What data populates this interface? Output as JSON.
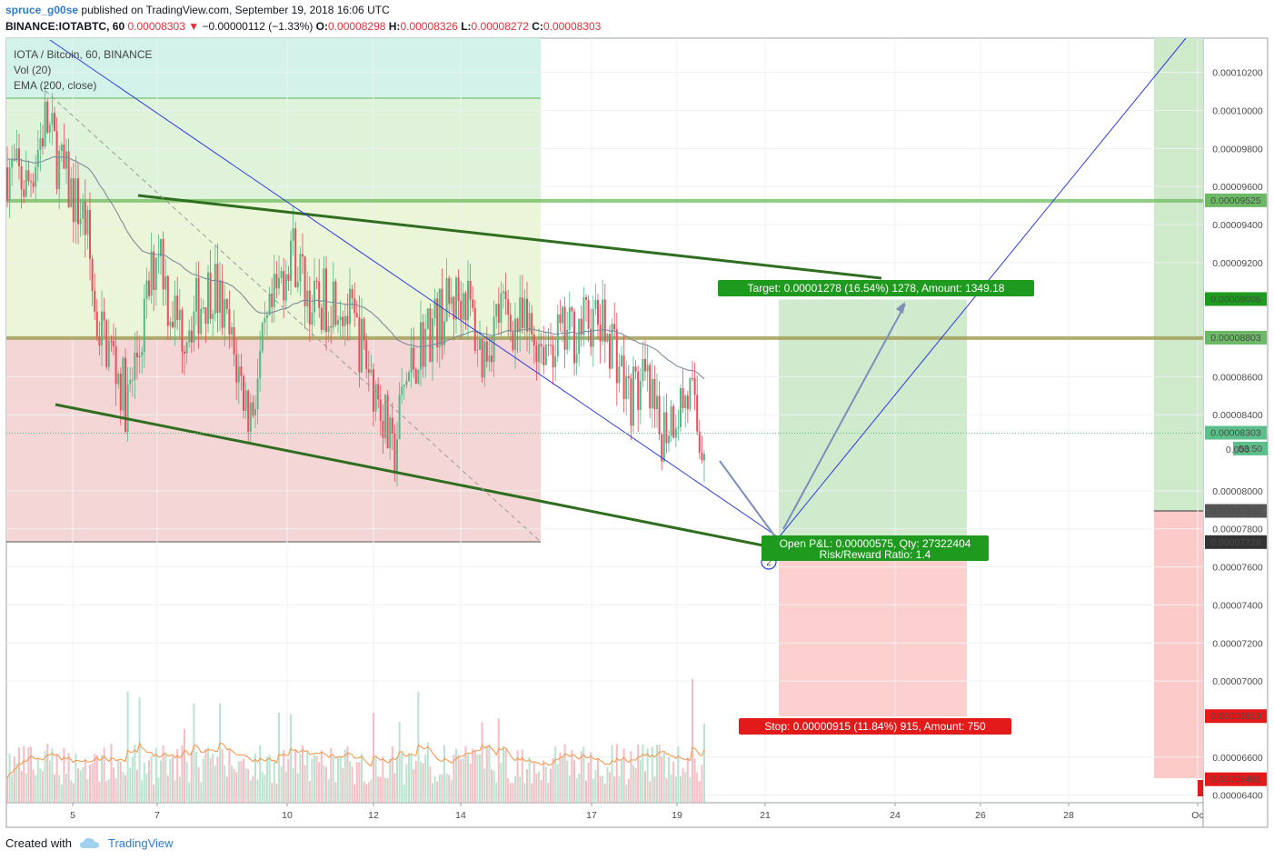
{
  "header": {
    "author": "spruce_g00se",
    "published": "published on TradingView.com, September 19, 2018 16:06 UTC",
    "symbol": "BINANCE:IOTABTC, 60",
    "last": "0.00008303",
    "change": "−0.00000112 (−1.33%)",
    "o_label": "O:",
    "o": "0.00008298",
    "h_label": "H:",
    "h": "0.00008326",
    "l_label": "L:",
    "l": "0.00008272",
    "c_label": "C:",
    "c": "0.00008303"
  },
  "legend": {
    "title": "IOTA / Bitcoin, 60, BINANCE",
    "vol": "Vol (20)",
    "ema": "EMA (200, close)"
  },
  "footer": {
    "created": "Created with",
    "brand": "TradingView"
  },
  "chart_data": {
    "type": "candlestick",
    "y_range": [
      6.36e-05,
      0.0001038
    ],
    "price_ticks": [
      "0.00010200",
      "0.00010000",
      "0.00009800",
      "0.00009600",
      "0.00009400",
      "0.00009200",
      "0.00008600",
      "0.00008400",
      "0.00008000",
      "0.00007800",
      "0.00007600",
      "0.00007400",
      "0.00007200",
      "0.00007000",
      "0.00006600",
      "0.00006400"
    ],
    "price_ticks_values": [
      0.000102,
      0.0001,
      9.8e-05,
      9.6e-05,
      9.4e-05,
      9.2e-05,
      8.6e-05,
      8.4e-05,
      8e-05,
      7.8e-05,
      7.6e-05,
      7.4e-05,
      7.2e-05,
      7e-05,
      6.6e-05,
      6.4e-05
    ],
    "date_labels": [
      "5",
      "7",
      "10",
      "12",
      "14",
      "17",
      "19",
      "21",
      "24",
      "26",
      "28",
      "Oc"
    ],
    "price_badges": [
      {
        "text": "0.00009525",
        "value": 9.525e-05,
        "color": "#6cb866"
      },
      {
        "text": "0.00009006",
        "value": 9.006e-05,
        "color": "#1e9a1e"
      },
      {
        "text": "0.00008803",
        "value": 8.803e-05,
        "color": "#6cb866"
      },
      {
        "text": "0.00008303",
        "value": 8.303e-05,
        "color": "#5cbf8a"
      },
      {
        "text": "53:50",
        "value": 8.22e-05,
        "color": "#5cbf8a"
      },
      {
        "text": "0.000",
        "value": 8.22e-05,
        "color": "none"
      },
      {
        "text": "0.00007892",
        "value": 7.892e-05,
        "color": "#555555"
      },
      {
        "text": "0.00007728",
        "value": 7.728e-05,
        "color": "#333333"
      },
      {
        "text": "0.00006813",
        "value": 6.813e-05,
        "color": "#e21a1a"
      },
      {
        "text": "0.00006481",
        "value": 6.481e-05,
        "color": "#e21a1a"
      }
    ],
    "horizontal_levels": [
      {
        "value": 9.525e-05,
        "color": "#7cc26c"
      },
      {
        "value": 8.803e-05,
        "color": "#a4a05a"
      }
    ],
    "long_position": {
      "entry": 7.728e-05,
      "target": 9.006e-05,
      "stop": 6.813e-05,
      "target_label": "Target: 0.00001278 (16.54%) 1278, Amount: 1349.18",
      "stop_label": "Stop: 0.00000915 (11.84%) 915, Amount: 750",
      "pnl_label": "Open P&L: 0.00000575, Qty: 27322404",
      "rr_label": "Risk/Reward Ratio: 1.4"
    },
    "wave_marker": "2",
    "colors": {
      "up": "#53b987",
      "down": "#eb4d5c",
      "ema": "#7e8c9c",
      "vol_ma": "#f59342",
      "trend": "#2f6d1f",
      "channel": "#2b3be0"
    }
  }
}
